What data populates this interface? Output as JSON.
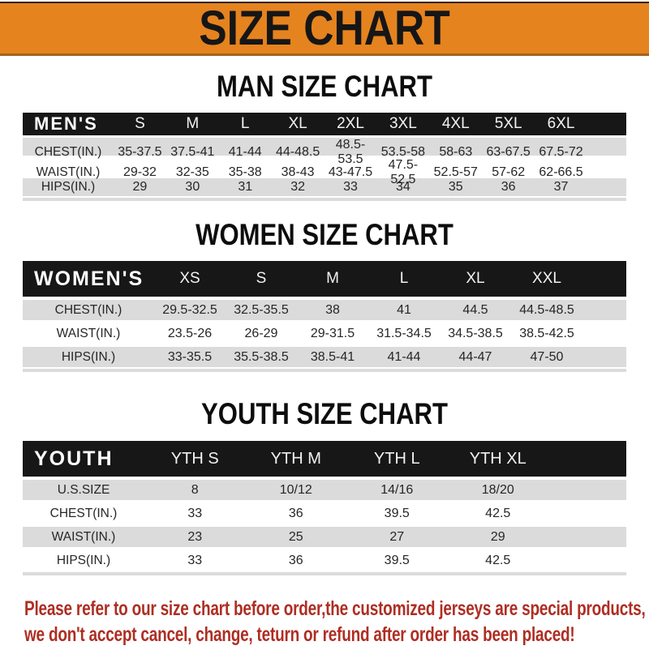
{
  "banner": {
    "title": "SIZE CHART"
  },
  "sections": [
    {
      "title": "MAN SIZE CHART",
      "table": {
        "header_label": "MEN'S",
        "columns": [
          "S",
          "M",
          "L",
          "XL",
          "2XL",
          "3XL",
          "4XL",
          "5XL",
          "6XL"
        ],
        "rows": [
          {
            "label": "CHEST(IN.)",
            "values": [
              "35-37.5",
              "37.5-41",
              "41-44",
              "44-48.5",
              "48.5-53.5",
              "53.5-58",
              "58-63",
              "63-67.5",
              "67.5-72"
            ]
          },
          {
            "label": "WAIST(IN.)",
            "values": [
              "29-32",
              "32-35",
              "35-38",
              "38-43",
              "43-47.5",
              "47.5-52.5",
              "52.5-57",
              "57-62",
              "62-66.5"
            ]
          },
          {
            "label": "HIPS(IN.)",
            "values": [
              "29",
              "30",
              "31",
              "32",
              "33",
              "34",
              "35",
              "36",
              "37"
            ]
          }
        ]
      }
    },
    {
      "title": "WOMEN SIZE CHART",
      "table": {
        "header_label": "WOMEN'S",
        "columns": [
          "XS",
          "S",
          "M",
          "L",
          "XL",
          "XXL"
        ],
        "rows": [
          {
            "label": "CHEST(IN.)",
            "values": [
              "29.5-32.5",
              "32.5-35.5",
              "38",
              "41",
              "44.5",
              "44.5-48.5"
            ]
          },
          {
            "label": "WAIST(IN.)",
            "values": [
              "23.5-26",
              "26-29",
              "29-31.5",
              "31.5-34.5",
              "34.5-38.5",
              "38.5-42.5"
            ]
          },
          {
            "label": "HIPS(IN.)",
            "values": [
              "33-35.5",
              "35.5-38.5",
              "38.5-41",
              "41-44",
              "44-47",
              "47-50"
            ]
          }
        ]
      }
    },
    {
      "title": "YOUTH SIZE CHART",
      "table": {
        "header_label": "YOUTH",
        "columns": [
          "YTH S",
          "YTH M",
          "YTH L",
          "YTH XL"
        ],
        "rows": [
          {
            "label": "U.S.SIZE",
            "values": [
              "8",
              "10/12",
              "14/16",
              "18/20"
            ]
          },
          {
            "label": "CHEST(IN.)",
            "values": [
              "33",
              "36",
              "39.5",
              "42.5"
            ]
          },
          {
            "label": "WAIST(IN.)",
            "values": [
              "23",
              "25",
              "27",
              "29"
            ]
          },
          {
            "label": "HIPS(IN.)",
            "values": [
              "33",
              "36",
              "39.5",
              "42.5"
            ]
          }
        ]
      }
    }
  ],
  "footer": {
    "lines": [
      "Please refer to our size chart before order,the customized jerseys are special products,",
      "we don't accept cancel, change, teturn or refund after order has been placed!"
    ]
  },
  "colors": {
    "orange": "#e5831f",
    "banner-text": "#161616",
    "bar": "#171717",
    "row-gray": "#dbdbdb",
    "red": "#ae2e23"
  }
}
